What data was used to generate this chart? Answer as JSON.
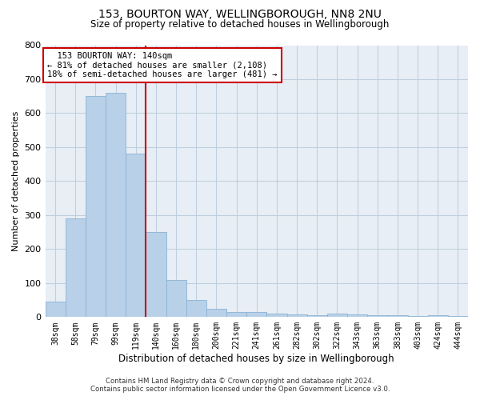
{
  "title": "153, BOURTON WAY, WELLINGBOROUGH, NN8 2NU",
  "subtitle": "Size of property relative to detached houses in Wellingborough",
  "xlabel": "Distribution of detached houses by size in Wellingborough",
  "ylabel": "Number of detached properties",
  "categories": [
    "38sqm",
    "58sqm",
    "79sqm",
    "99sqm",
    "119sqm",
    "140sqm",
    "160sqm",
    "180sqm",
    "200sqm",
    "221sqm",
    "241sqm",
    "261sqm",
    "282sqm",
    "302sqm",
    "322sqm",
    "343sqm",
    "363sqm",
    "383sqm",
    "403sqm",
    "424sqm",
    "444sqm"
  ],
  "values": [
    45,
    290,
    650,
    660,
    480,
    250,
    110,
    50,
    25,
    15,
    15,
    10,
    8,
    5,
    10,
    8,
    5,
    5,
    3,
    5,
    3
  ],
  "bar_color": "#b8d0e8",
  "bar_edgecolor": "#8ab4d4",
  "highlight_index": 5,
  "highlight_color": "#cc0000",
  "annotation_text": "  153 BOURTON WAY: 140sqm\n← 81% of detached houses are smaller (2,108)\n18% of semi-detached houses are larger (481) →",
  "annotation_box_color": "#ffffff",
  "annotation_box_edgecolor": "#cc0000",
  "ylim": [
    0,
    800
  ],
  "yticks": [
    0,
    100,
    200,
    300,
    400,
    500,
    600,
    700,
    800
  ],
  "background_color": "#ffffff",
  "plot_bg_color": "#e8eef5",
  "grid_color": "#c0cfe0",
  "footer": "Contains HM Land Registry data © Crown copyright and database right 2024.\nContains public sector information licensed under the Open Government Licence v3.0."
}
